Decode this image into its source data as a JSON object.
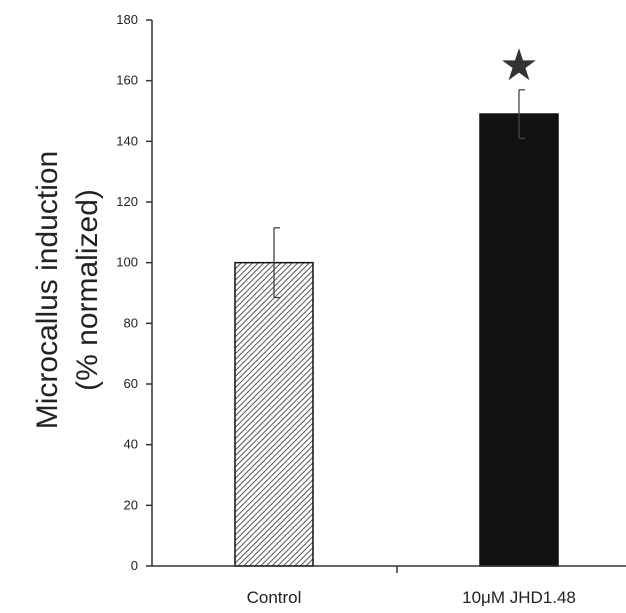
{
  "chart_data": {
    "type": "bar",
    "categories": [
      "Control",
      "10μM JHD1.48"
    ],
    "values": [
      100,
      149
    ],
    "errors": [
      11.5,
      8
    ],
    "significance": [
      "",
      "★"
    ],
    "ylabel_line1": "Microcallus induction",
    "ylabel_line2": "(% normalized)",
    "ylim": [
      0,
      180
    ],
    "yticks": [
      "0",
      "20",
      "40",
      "60",
      "80",
      "100",
      "120",
      "140",
      "160",
      "180"
    ],
    "grid": false,
    "legend": "none"
  },
  "colors": {
    "control_fill": "hatched-gray",
    "treatment_fill": "#111111",
    "axis": "#333333"
  }
}
